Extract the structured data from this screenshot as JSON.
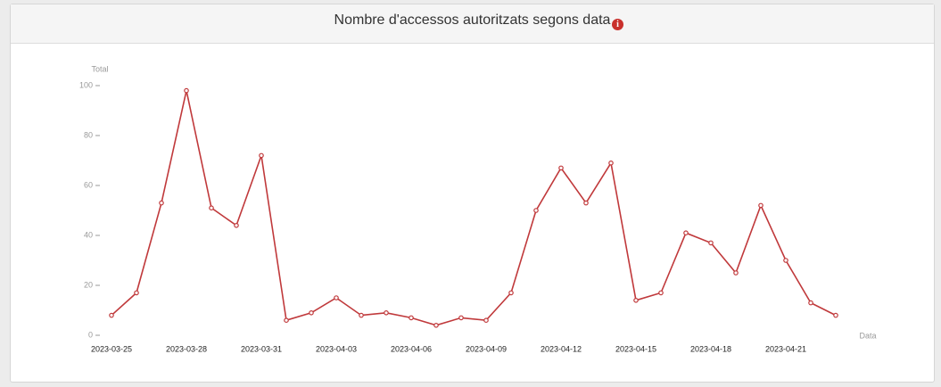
{
  "chart_data": {
    "type": "line",
    "title": "Nombre d'accessos autoritzats segons data",
    "x_label": "Data",
    "y_label": "Total",
    "x": [
      "2023-03-25",
      "2023-03-26",
      "2023-03-27",
      "2023-03-28",
      "2023-03-29",
      "2023-03-30",
      "2023-03-31",
      "2023-04-01",
      "2023-04-02",
      "2023-04-03",
      "2023-04-04",
      "2023-04-05",
      "2023-04-06",
      "2023-04-07",
      "2023-04-08",
      "2023-04-09",
      "2023-04-10",
      "2023-04-11",
      "2023-04-12",
      "2023-04-13",
      "2023-04-14",
      "2023-04-15",
      "2023-04-16",
      "2023-04-17",
      "2023-04-18",
      "2023-04-19",
      "2023-04-20",
      "2023-04-21",
      "2023-04-22",
      "2023-04-23"
    ],
    "values": [
      8,
      17,
      53,
      98,
      51,
      44,
      72,
      6,
      9,
      15,
      8,
      9,
      7,
      4,
      7,
      6,
      17,
      50,
      67,
      53,
      69,
      14,
      17,
      41,
      37,
      25,
      52,
      30,
      13,
      8
    ],
    "color": "#c0393b",
    "xticks": [
      "2023-03-25",
      "2023-03-28",
      "2023-03-31",
      "2023-04-03",
      "2023-04-06",
      "2023-04-09",
      "2023-04-12",
      "2023-04-15",
      "2023-04-18",
      "2023-04-21"
    ],
    "ylim": [
      0,
      100
    ],
    "yticks": [
      0,
      20,
      40,
      60,
      80,
      100
    ]
  }
}
